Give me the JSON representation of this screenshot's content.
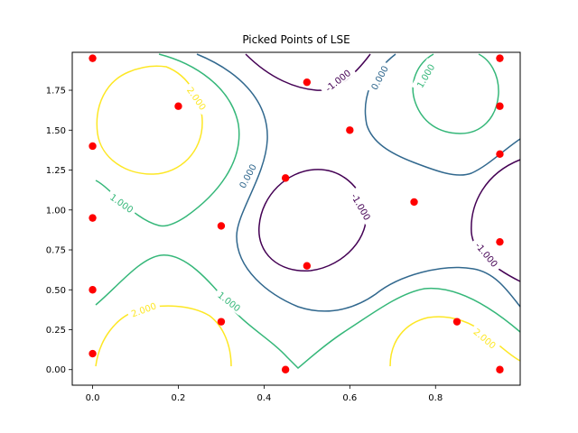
{
  "chart_data": {
    "type": "scatter",
    "title": "Picked Points of LSE",
    "xlabel": "",
    "ylabel": "",
    "xlim": [
      -0.0475,
      0.9975
    ],
    "ylim": [
      -0.0975,
      1.9875
    ],
    "x_ticks": [
      0.0,
      0.2,
      0.4,
      0.6,
      0.8
    ],
    "x_tick_labels": [
      "0.0",
      "0.2",
      "0.4",
      "0.6",
      "0.8"
    ],
    "y_ticks": [
      0.0,
      0.25,
      0.5,
      0.75,
      1.0,
      1.25,
      1.5,
      1.75
    ],
    "y_tick_labels": [
      "0.00",
      "0.25",
      "0.50",
      "0.75",
      "1.00",
      "1.25",
      "1.50",
      "1.75"
    ],
    "grid": false,
    "points": {
      "color": "#ff0000",
      "x": [
        0.0,
        0.0,
        0.0,
        0.0,
        0.0,
        0.2,
        0.3,
        0.3,
        0.45,
        0.45,
        0.5,
        0.5,
        0.6,
        0.75,
        0.85,
        0.95,
        0.95,
        0.95,
        0.95,
        0.95
      ],
      "y": [
        1.95,
        1.4,
        0.95,
        0.5,
        0.1,
        1.65,
        0.9,
        0.3,
        1.2,
        0.0,
        1.8,
        0.65,
        1.5,
        1.05,
        0.3,
        1.95,
        1.65,
        1.35,
        0.8,
        0.0
      ]
    },
    "contour_levels": [
      {
        "level": -1.0,
        "color": "#440154",
        "labels": [
          "-1.000",
          "-1.000",
          "-1.000"
        ]
      },
      {
        "level": 0.0,
        "color": "#31688e",
        "labels": [
          "0.000",
          "0.000"
        ]
      },
      {
        "level": 1.0,
        "color": "#35b779",
        "labels": [
          "1.000",
          "1.000",
          "1.000"
        ]
      },
      {
        "level": 2.0,
        "color": "#fde725",
        "labels": [
          "2.000",
          "2.000",
          "2.000"
        ]
      }
    ]
  }
}
